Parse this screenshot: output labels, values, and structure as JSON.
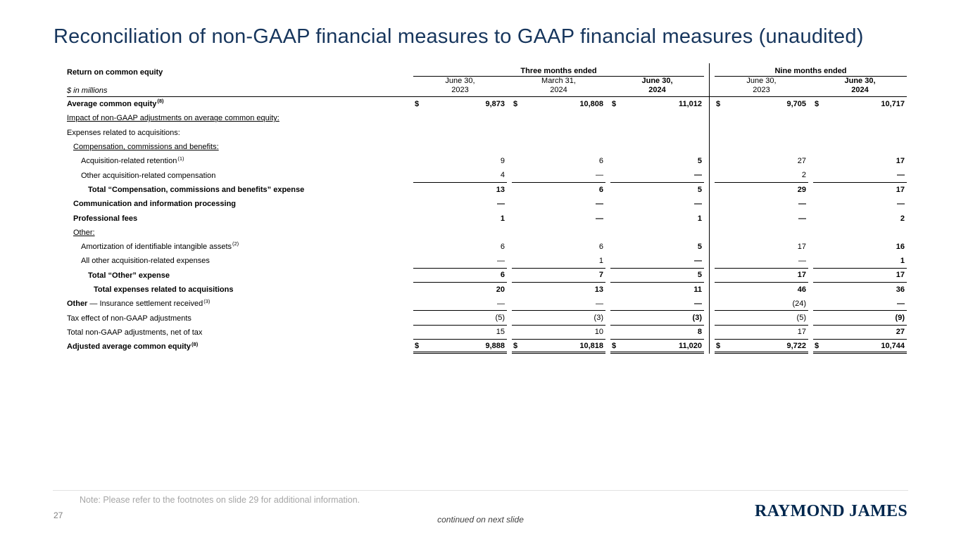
{
  "slide": {
    "title": "Reconciliation of non-GAAP financial measures to GAAP financial measures (unaudited)",
    "note": "Note: Please refer to the footnotes on slide 29 for additional information.",
    "page_number": "27",
    "continued": "continued on next slide",
    "logo": "RAYMOND JAMES"
  },
  "table": {
    "row_header": "Return on common equity",
    "units": "$ in millions",
    "groups": [
      {
        "label": "Three months ended",
        "span": 3
      },
      {
        "label": "Nine months ended",
        "span": 2
      }
    ],
    "columns": [
      {
        "line1": "June 30,",
        "line2": "2023",
        "bold": false
      },
      {
        "line1": "March 31,",
        "line2": "2024",
        "bold": false
      },
      {
        "line1": "June 30,",
        "line2": "2024",
        "bold": true
      },
      {
        "line1": "June 30,",
        "line2": "2023",
        "bold": false
      },
      {
        "line1": "June 30,",
        "line2": "2024",
        "bold": true
      }
    ],
    "rows": [
      {
        "label": "Average common equity",
        "sup": "(8)",
        "bold": true,
        "indent": 0,
        "dollar": true,
        "values": [
          "9,873",
          "10,808",
          "11,012",
          "9,705",
          "10,717"
        ]
      },
      {
        "label": "Impact of non-GAAP adjustments on average common equity:",
        "underline": true,
        "indent": 0,
        "values": []
      },
      {
        "label": "Expenses related to acquisitions:",
        "indent": 0,
        "values": []
      },
      {
        "label": "Compensation, commissions and benefits:",
        "underline": true,
        "indent": 1,
        "values": []
      },
      {
        "label": "Acquisition-related retention",
        "sup": "(1)",
        "indent": 2,
        "values": [
          "9",
          "6",
          "5",
          "27",
          "17"
        ]
      },
      {
        "label": "Other acquisition-related compensation",
        "indent": 2,
        "line_below": true,
        "values": [
          "4",
          "—",
          "—",
          "2",
          "—"
        ]
      },
      {
        "label": "Total “Compensation, commissions and benefits” expense",
        "bold": true,
        "indent": 3,
        "values": [
          "13",
          "6",
          "5",
          "29",
          "17"
        ]
      },
      {
        "label": "Communication and information processing",
        "bold": true,
        "indent": 1,
        "values": [
          "—",
          "—",
          "—",
          "—",
          "—"
        ]
      },
      {
        "label": "Professional fees",
        "bold": true,
        "indent": 1,
        "values": [
          "1",
          "—",
          "1",
          "—",
          "2"
        ]
      },
      {
        "label": "Other:",
        "underline": true,
        "indent": 1,
        "values": []
      },
      {
        "label": "Amortization of identifiable intangible assets",
        "sup": "(2)",
        "indent": 2,
        "values": [
          "6",
          "6",
          "5",
          "17",
          "16"
        ]
      },
      {
        "label": "All other acquisition-related expenses",
        "indent": 2,
        "line_below": true,
        "values": [
          "—",
          "1",
          "—",
          "—",
          "1"
        ]
      },
      {
        "label": "Total “Other” expense",
        "bold": true,
        "indent": 3,
        "line_below": true,
        "values": [
          "6",
          "7",
          "5",
          "17",
          "17"
        ]
      },
      {
        "label": "Total expenses related to acquisitions",
        "bold": true,
        "indent": 4,
        "values": [
          "20",
          "13",
          "11",
          "46",
          "36"
        ]
      },
      {
        "label_bold": "Other",
        "label": " — Insurance settlement received",
        "sup": "(3)",
        "indent": 0,
        "line_below": true,
        "values": [
          "—",
          "—",
          "—",
          "(24)",
          "—"
        ]
      },
      {
        "label": "Tax effect of non-GAAP adjustments",
        "indent": 0,
        "line_below": true,
        "values": [
          "(5)",
          "(3)",
          "(3)",
          "(5)",
          "(9)"
        ]
      },
      {
        "label": "Total non-GAAP adjustments, net of tax",
        "indent": 0,
        "line_below": true,
        "values": [
          "15",
          "10",
          "8",
          "17",
          "27"
        ]
      },
      {
        "label": "Adjusted average common equity",
        "sup": "(8)",
        "bold": true,
        "indent": 0,
        "dollar": true,
        "double_below": true,
        "values": [
          "9,888",
          "10,818",
          "11,020",
          "9,722",
          "10,744"
        ]
      }
    ]
  }
}
